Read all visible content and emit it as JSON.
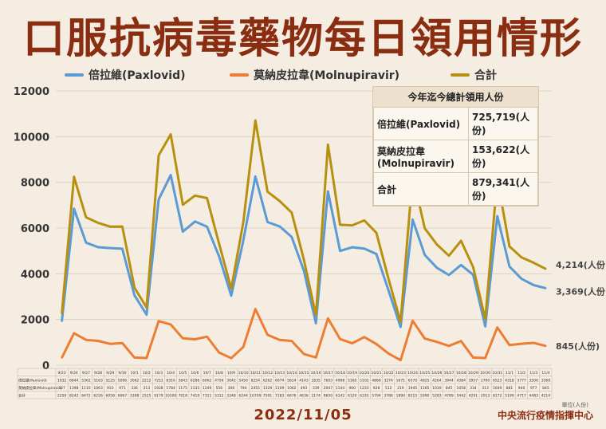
{
  "title": "口服抗病毒藥物每日領用情形",
  "legend": {
    "paxlovid": "倍拉維(Paxlovid)",
    "molnupiravir": "莫納皮拉韋(Molnupiravir)",
    "total": "合計"
  },
  "summary": {
    "heading": "今年迄今總計領用人份",
    "rows": [
      {
        "name": "倍拉維(Paxlovid)",
        "value": "725,719(人份)"
      },
      {
        "name": "莫納皮拉韋(Molnupiravir)",
        "value": "153,622(人份)"
      },
      {
        "name": "合計",
        "value": "879,341(人份)"
      }
    ]
  },
  "end_labels": {
    "total": "4,214(人份)",
    "paxlovid": "3,369(人份)",
    "molnupiravir": "845(人份)"
  },
  "table_row_labels": [
    "倍拉維(Paxlovid)",
    "莫納皮拉韋(Molnupiravir)",
    "合計"
  ],
  "date": "2022/11/05",
  "unit_note": "單位(人份)",
  "org": "中央流行疫情指揮中心",
  "colors": {
    "paxlovid": "#5b9bd5",
    "molnupiravir": "#ed7d31",
    "total": "#b8900f",
    "title": "#8a2e12"
  },
  "chart_data": {
    "type": "line",
    "ylim": [
      0,
      12000
    ],
    "yticks": [
      0,
      2000,
      4000,
      6000,
      8000,
      10000,
      12000
    ],
    "grid": true,
    "categories": [
      "9/23",
      "9/24",
      "9/27",
      "9/28",
      "9/29",
      "9/30",
      "10/1",
      "10/2",
      "10/3",
      "10/4",
      "10/5",
      "10/6",
      "10/7",
      "10/8",
      "10/9",
      "10/10",
      "10/11",
      "10/12",
      "10/13",
      "10/14",
      "10/15",
      "10/16",
      "10/17",
      "10/18",
      "10/19",
      "10/20",
      "10/21",
      "10/22",
      "10/23",
      "10/24",
      "10/25",
      "10/26",
      "10/27",
      "10/28",
      "10/29",
      "10/30",
      "10/31",
      "11/1",
      "11/2",
      "11/3",
      "11/4"
    ],
    "series": [
      {
        "name": "倍拉維(Paxlovid)",
        "key": "paxlovid",
        "values": [
          1932,
          6844,
          5362,
          5163,
          5125,
          5096,
          3062,
          2212,
          7251,
          8316,
          5843,
          6286,
          6062,
          4756,
          3042,
          5450,
          8254,
          6262,
          6074,
          5614,
          4143,
          1835,
          7603,
          4998,
          5160,
          5102,
          4866,
          3274,
          1671,
          6370,
          4825,
          4264,
          3944,
          4384,
          3957,
          1700,
          6523,
          4318,
          3777,
          3506,
          3369
        ]
      },
      {
        "name": "莫納皮拉韋(Molnupiravir)",
        "key": "molnupiravir",
        "values": [
          327,
          1398,
          1110,
          1063,
          933,
          971,
          336,
          313,
          1928,
          1784,
          1175,
          1133,
          1249,
          556,
          306,
          794,
          2455,
          1329,
          1109,
          1062,
          493,
          339,
          2047,
          1144,
          960,
          1233,
          928,
          512,
          219,
          1945,
          1165,
          1019,
          845,
          1058,
          334,
          313,
          1649,
          881,
          940,
          977,
          845
        ]
      },
      {
        "name": "合計",
        "key": "total",
        "values": [
          2259,
          8242,
          6472,
          6226,
          6058,
          6067,
          3398,
          2525,
          9179,
          10100,
          7018,
          7419,
          7311,
          5312,
          3348,
          6244,
          10709,
          7591,
          7183,
          6676,
          4636,
          2174,
          9650,
          6142,
          6120,
          6335,
          5794,
          3786,
          1890,
          8315,
          5990,
          5283,
          4789,
          5442,
          4291,
          2013,
          8172,
          5199,
          4717,
          4483,
          4214
        ]
      }
    ],
    "table_values": [
      [
        "1932",
        "6844",
        "5362",
        "5163",
        "5125",
        "5096",
        "3062",
        "2212",
        "7251",
        "8316",
        "5843",
        "6286",
        "6062",
        "4756",
        "3042",
        "5450",
        "8254",
        "6262",
        "6074",
        "5614",
        "4143",
        "1835",
        "7603",
        "4998",
        "5160",
        "5102",
        "4866",
        "3274",
        "1671",
        "6370",
        "4825",
        "4264",
        "3944",
        "4384",
        "3957",
        "1700",
        "6523",
        "4318",
        "3777",
        "3506",
        "3369"
      ],
      [
        "327",
        "1398",
        "1110",
        "1063",
        "933",
        "971",
        "336",
        "313",
        "1928",
        "1784",
        "1175",
        "1133",
        "1249",
        "556",
        "306",
        "794",
        "2455",
        "1329",
        "1109",
        "1062",
        "493",
        "339",
        "2047",
        "1144",
        "960",
        "1233",
        "928",
        "512",
        "219",
        "1945",
        "1165",
        "1019",
        "845",
        "1058",
        "334",
        "313",
        "1649",
        "881",
        "940",
        "977",
        "845"
      ],
      [
        "2259",
        "8242",
        "6472",
        "6226",
        "6058",
        "6067",
        "3398",
        "2525",
        "9179",
        "10100",
        "7018",
        "7419",
        "7311",
        "5312",
        "3348",
        "6244",
        "10709",
        "7591",
        "7183",
        "6676",
        "4636",
        "2174",
        "9650",
        "6142",
        "6120",
        "6335",
        "5794",
        "3786",
        "1890",
        "8315",
        "5990",
        "5283",
        "4789",
        "5442",
        "4291",
        "2013",
        "8172",
        "5199",
        "4717",
        "4483",
        "4214"
      ]
    ]
  }
}
